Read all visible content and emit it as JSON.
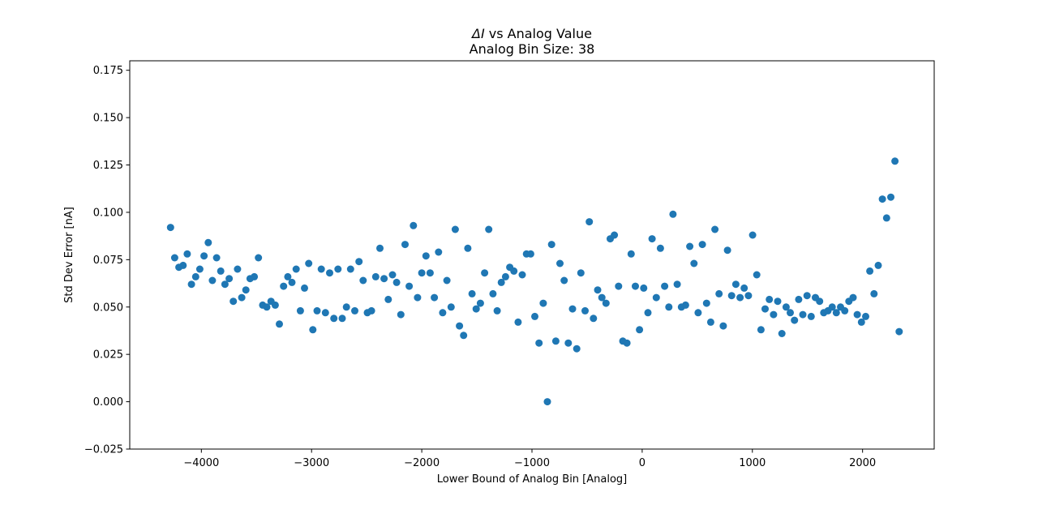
{
  "chart_data": {
    "type": "scatter",
    "title_symbol": "ΔI",
    "title_rest": " vs Analog Value",
    "subtitle": "Analog Bin Size: 38",
    "xlabel": "Lower Bound of Analog Bin [Analog]",
    "ylabel": "Std Dev Error [nA]",
    "xlim": [
      -4650,
      2650
    ],
    "ylim": [
      -0.025,
      0.18
    ],
    "xticks": [
      -4000,
      -3000,
      -2000,
      -1000,
      0,
      1000,
      2000
    ],
    "xtick_labels": [
      "−4000",
      "−3000",
      "−2000",
      "−1000",
      "0",
      "1000",
      "2000"
    ],
    "yticks": [
      -0.025,
      0.0,
      0.025,
      0.05,
      0.075,
      0.1,
      0.125,
      0.15,
      0.175
    ],
    "ytick_labels": [
      "−0.025",
      "0.000",
      "0.025",
      "0.050",
      "0.075",
      "0.100",
      "0.125",
      "0.150",
      "0.175"
    ],
    "marker_color": "#1f77b4",
    "grid": false,
    "points": [
      [
        -4280,
        0.092
      ],
      [
        -4242,
        0.076
      ],
      [
        -4204,
        0.071
      ],
      [
        -4166,
        0.072
      ],
      [
        -4128,
        0.078
      ],
      [
        -4090,
        0.062
      ],
      [
        -4052,
        0.066
      ],
      [
        -4014,
        0.07
      ],
      [
        -3976,
        0.077
      ],
      [
        -3938,
        0.084
      ],
      [
        -3900,
        0.064
      ],
      [
        -3862,
        0.076
      ],
      [
        -3824,
        0.069
      ],
      [
        -3786,
        0.062
      ],
      [
        -3748,
        0.065
      ],
      [
        -3710,
        0.053
      ],
      [
        -3672,
        0.07
      ],
      [
        -3634,
        0.055
      ],
      [
        -3596,
        0.059
      ],
      [
        -3558,
        0.065
      ],
      [
        -3520,
        0.066
      ],
      [
        -3482,
        0.076
      ],
      [
        -3444,
        0.051
      ],
      [
        -3406,
        0.05
      ],
      [
        -3368,
        0.053
      ],
      [
        -3330,
        0.051
      ],
      [
        -3292,
        0.041
      ],
      [
        -3254,
        0.061
      ],
      [
        -3216,
        0.066
      ],
      [
        -3178,
        0.063
      ],
      [
        -3140,
        0.07
      ],
      [
        -3102,
        0.048
      ],
      [
        -3064,
        0.06
      ],
      [
        -3026,
        0.073
      ],
      [
        -2988,
        0.038
      ],
      [
        -2950,
        0.048
      ],
      [
        -2912,
        0.07
      ],
      [
        -2874,
        0.047
      ],
      [
        -2836,
        0.068
      ],
      [
        -2798,
        0.044
      ],
      [
        -2760,
        0.07
      ],
      [
        -2722,
        0.044
      ],
      [
        -2684,
        0.05
      ],
      [
        -2646,
        0.07
      ],
      [
        -2608,
        0.048
      ],
      [
        -2570,
        0.074
      ],
      [
        -2532,
        0.064
      ],
      [
        -2494,
        0.047
      ],
      [
        -2456,
        0.048
      ],
      [
        -2418,
        0.066
      ],
      [
        -2380,
        0.081
      ],
      [
        -2342,
        0.065
      ],
      [
        -2304,
        0.054
      ],
      [
        -2266,
        0.067
      ],
      [
        -2228,
        0.063
      ],
      [
        -2190,
        0.046
      ],
      [
        -2152,
        0.083
      ],
      [
        -2114,
        0.061
      ],
      [
        -2076,
        0.093
      ],
      [
        -2038,
        0.055
      ],
      [
        -2000,
        0.068
      ],
      [
        -1962,
        0.077
      ],
      [
        -1924,
        0.068
      ],
      [
        -1886,
        0.055
      ],
      [
        -1848,
        0.079
      ],
      [
        -1810,
        0.047
      ],
      [
        -1772,
        0.064
      ],
      [
        -1734,
        0.05
      ],
      [
        -1696,
        0.091
      ],
      [
        -1658,
        0.04
      ],
      [
        -1620,
        0.035
      ],
      [
        -1582,
        0.081
      ],
      [
        -1544,
        0.057
      ],
      [
        -1506,
        0.049
      ],
      [
        -1468,
        0.052
      ],
      [
        -1430,
        0.068
      ],
      [
        -1392,
        0.091
      ],
      [
        -1354,
        0.057
      ],
      [
        -1316,
        0.048
      ],
      [
        -1278,
        0.063
      ],
      [
        -1240,
        0.066
      ],
      [
        -1202,
        0.071
      ],
      [
        -1164,
        0.069
      ],
      [
        -1126,
        0.042
      ],
      [
        -1088,
        0.067
      ],
      [
        -1050,
        0.078
      ],
      [
        -1012,
        0.078
      ],
      [
        -974,
        0.045
      ],
      [
        -936,
        0.031
      ],
      [
        -898,
        0.052
      ],
      [
        -860,
        0.0
      ],
      [
        -822,
        0.083
      ],
      [
        -784,
        0.032
      ],
      [
        -746,
        0.073
      ],
      [
        -708,
        0.064
      ],
      [
        -670,
        0.031
      ],
      [
        -632,
        0.049
      ],
      [
        -594,
        0.028
      ],
      [
        -556,
        0.068
      ],
      [
        -518,
        0.048
      ],
      [
        -480,
        0.095
      ],
      [
        -442,
        0.044
      ],
      [
        -404,
        0.059
      ],
      [
        -366,
        0.055
      ],
      [
        -328,
        0.052
      ],
      [
        -290,
        0.086
      ],
      [
        -252,
        0.088
      ],
      [
        -214,
        0.061
      ],
      [
        -176,
        0.032
      ],
      [
        -138,
        0.031
      ],
      [
        -100,
        0.078
      ],
      [
        -62,
        0.061
      ],
      [
        -24,
        0.038
      ],
      [
        14,
        0.06
      ],
      [
        52,
        0.047
      ],
      [
        90,
        0.086
      ],
      [
        128,
        0.055
      ],
      [
        166,
        0.081
      ],
      [
        204,
        0.061
      ],
      [
        242,
        0.05
      ],
      [
        280,
        0.099
      ],
      [
        318,
        0.062
      ],
      [
        356,
        0.05
      ],
      [
        394,
        0.051
      ],
      [
        432,
        0.082
      ],
      [
        470,
        0.073
      ],
      [
        508,
        0.047
      ],
      [
        546,
        0.083
      ],
      [
        584,
        0.052
      ],
      [
        622,
        0.042
      ],
      [
        660,
        0.091
      ],
      [
        698,
        0.057
      ],
      [
        736,
        0.04
      ],
      [
        774,
        0.08
      ],
      [
        812,
        0.056
      ],
      [
        850,
        0.062
      ],
      [
        888,
        0.055
      ],
      [
        926,
        0.06
      ],
      [
        964,
        0.056
      ],
      [
        1002,
        0.088
      ],
      [
        1040,
        0.067
      ],
      [
        1078,
        0.038
      ],
      [
        1116,
        0.049
      ],
      [
        1154,
        0.054
      ],
      [
        1192,
        0.046
      ],
      [
        1230,
        0.053
      ],
      [
        1268,
        0.036
      ],
      [
        1306,
        0.05
      ],
      [
        1344,
        0.047
      ],
      [
        1382,
        0.043
      ],
      [
        1420,
        0.054
      ],
      [
        1458,
        0.046
      ],
      [
        1496,
        0.056
      ],
      [
        1534,
        0.045
      ],
      [
        1572,
        0.055
      ],
      [
        1610,
        0.053
      ],
      [
        1648,
        0.047
      ],
      [
        1686,
        0.048
      ],
      [
        1724,
        0.05
      ],
      [
        1762,
        0.047
      ],
      [
        1800,
        0.05
      ],
      [
        1838,
        0.048
      ],
      [
        1876,
        0.053
      ],
      [
        1914,
        0.055
      ],
      [
        1952,
        0.046
      ],
      [
        1990,
        0.042
      ],
      [
        2028,
        0.045
      ],
      [
        2066,
        0.069
      ],
      [
        2104,
        0.057
      ],
      [
        2142,
        0.072
      ],
      [
        2180,
        0.107
      ],
      [
        2218,
        0.097
      ],
      [
        2256,
        0.108
      ],
      [
        2294,
        0.127
      ],
      [
        2332,
        0.037
      ]
    ]
  }
}
